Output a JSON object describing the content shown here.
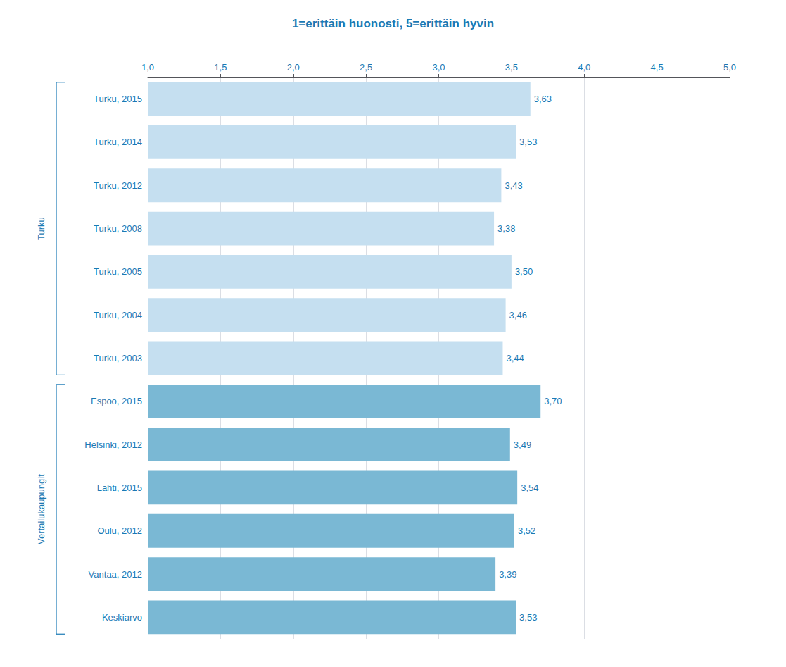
{
  "chart_data": {
    "type": "bar",
    "orientation": "horizontal",
    "title": "1=erittäin huonosti, 5=erittäin hyvin",
    "categories": [
      "Turku, 2015",
      "Turku, 2014",
      "Turku, 2012",
      "Turku, 2008",
      "Turku, 2005",
      "Turku, 2004",
      "Turku, 2003",
      "Espoo, 2015",
      "Helsinki, 2012",
      "Lahti, 2015",
      "Oulu, 2012",
      "Vantaa, 2012",
      "Keskiarvo"
    ],
    "values": [
      3.63,
      3.53,
      3.43,
      3.38,
      3.5,
      3.46,
      3.44,
      3.7,
      3.49,
      3.54,
      3.52,
      3.39,
      3.53
    ],
    "value_labels": [
      "3,63",
      "3,53",
      "3,43",
      "3,38",
      "3,50",
      "3,46",
      "3,44",
      "3,70",
      "3,49",
      "3,54",
      "3,52",
      "3,39",
      "3,53"
    ],
    "colors": [
      "#c5dff0",
      "#c5dff0",
      "#c5dff0",
      "#c5dff0",
      "#c5dff0",
      "#c5dff0",
      "#c5dff0",
      "#7ab8d4",
      "#7ab8d4",
      "#7ab8d4",
      "#7ab8d4",
      "#7ab8d4",
      "#7ab8d4"
    ],
    "xlim": [
      1.0,
      5.0
    ],
    "xticks": [
      {
        "value": 1.0,
        "label": "1,0"
      },
      {
        "value": 1.5,
        "label": "1,5"
      },
      {
        "value": 2.0,
        "label": "2,0"
      },
      {
        "value": 2.5,
        "label": "2,5"
      },
      {
        "value": 3.0,
        "label": "3,0"
      },
      {
        "value": 3.5,
        "label": "3,5"
      },
      {
        "value": 4.0,
        "label": "4,0"
      },
      {
        "value": 4.5,
        "label": "4,5"
      },
      {
        "value": 5.0,
        "label": "5,0"
      }
    ],
    "data_labels": true,
    "grid": true,
    "annotations": [
      {
        "text": "Turku",
        "from": "Turku, 2015",
        "to": "Turku, 2003"
      },
      {
        "text": "Vertailukaupungit",
        "from": "Espoo, 2015",
        "to": "Keskiarvo"
      }
    ]
  }
}
